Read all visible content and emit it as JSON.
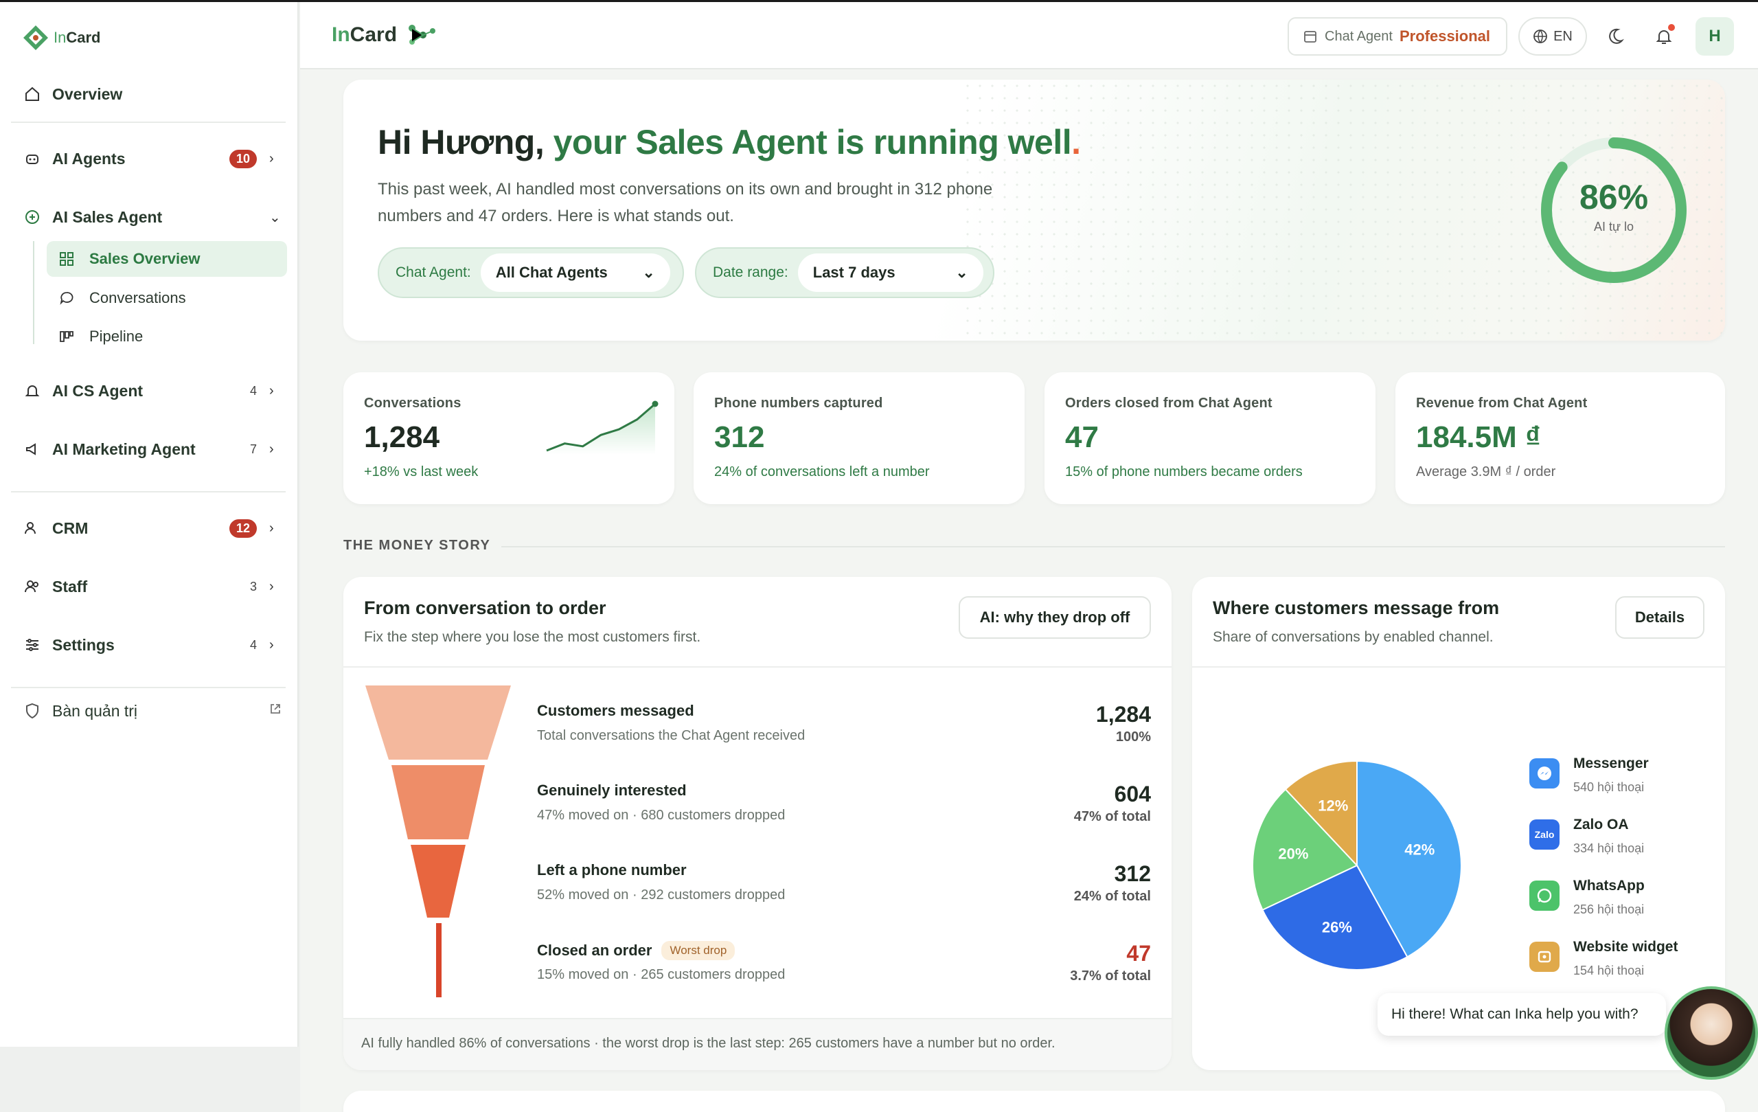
{
  "sidebar": {
    "logo_prefix": "In",
    "logo_suffix": "Card",
    "overview": "Overview",
    "items": [
      {
        "label": "AI Agents",
        "badge": "10"
      },
      {
        "label": "AI Sales Agent"
      },
      {
        "label": "AI CS Agent",
        "count": "4"
      },
      {
        "label": "AI Marketing Agent",
        "count": "7"
      },
      {
        "label": "CRM",
        "badge": "12"
      },
      {
        "label": "Staff",
        "count": "3"
      },
      {
        "label": "Settings",
        "count": "4"
      }
    ],
    "sub_items": [
      "Sales Overview",
      "Conversations",
      "Pipeline"
    ],
    "admin": "Bàn quản trị"
  },
  "header": {
    "brand_prefix": "In",
    "brand_suffix": "Card",
    "plan_label": "Chat Agent",
    "plan_value": "Professional",
    "lang": "EN",
    "avatar": "H"
  },
  "hero": {
    "greeting": "Hi Hương,",
    "headline": " your Sales Agent is running well",
    "dot": ".",
    "description": "This past week, AI handled most conversations on its own and brought in 312 phone numbers and 47 orders. Here is what stands out.",
    "filter_agent_label": "Chat Agent:",
    "filter_agent_value": "All Chat Agents",
    "filter_date_label": "Date range:",
    "filter_date_value": "Last 7 days",
    "ring_value": "86%",
    "ring_fraction": 0.86,
    "ring_label": "AI tự lo"
  },
  "stats": [
    {
      "title": "Conversations",
      "value": "1,284",
      "sub": "+18% vs last week",
      "sparkline": [
        3,
        4,
        3.6,
        5.2,
        6,
        7.4,
        9.6
      ]
    },
    {
      "title": "Phone numbers captured",
      "value": "312",
      "sub": "24% of conversations left a number"
    },
    {
      "title": "Orders closed from Chat Agent",
      "value": "47",
      "sub": "15% of phone numbers became orders"
    },
    {
      "title": "Revenue from Chat Agent",
      "value": "184.5M ₫",
      "sub": "Average 3.9M ₫ / order"
    }
  ],
  "section_label": "THE MONEY STORY",
  "funnel": {
    "title": "From conversation to order",
    "subtitle": "Fix the step where you lose the most customers first.",
    "button": "AI: why they drop off",
    "rows": [
      {
        "label": "Customers messaged",
        "desc": "Total conversations the Chat Agent received",
        "value": "1,284",
        "pct": "100%"
      },
      {
        "label": "Genuinely interested",
        "desc": "47% moved on · 680 customers dropped",
        "value": "604",
        "pct": "47% of total"
      },
      {
        "label": "Left a phone number",
        "desc": "52% moved on · 292 customers dropped",
        "value": "312",
        "pct": "24% of total"
      },
      {
        "label": "Closed an order",
        "tag": "Worst drop",
        "desc": "15% moved on · 265 customers dropped",
        "value": "47",
        "pct": "3.7% of total"
      }
    ],
    "footer": "AI fully handled 86% of conversations · the worst drop is the last step: 265 customers have a number but no order."
  },
  "channels": {
    "title": "Where customers message from",
    "subtitle": "Share of conversations by enabled channel.",
    "button": "Details",
    "legend": [
      {
        "name": "Messenger",
        "count": "540 hội thoại",
        "color": "#3b8df2"
      },
      {
        "name": "Zalo OA",
        "count": "334 hội thoại",
        "color": "#2f6ee8"
      },
      {
        "name": "WhatsApp",
        "count": "256 hội thoại",
        "color": "#4cc36a"
      },
      {
        "name": "Website widget",
        "count": "154 hội thoại",
        "color": "#e0a94a"
      }
    ]
  },
  "chart_data": {
    "type": "pie",
    "categories": [
      "Messenger",
      "Zalo OA",
      "WhatsApp",
      "Website widget"
    ],
    "values": [
      42,
      26,
      20,
      12
    ],
    "labels": [
      "42%",
      "26%",
      "20%",
      "12%"
    ],
    "colors": [
      "#4aa8f5",
      "#2e6be6",
      "#6cd07a",
      "#e0a94a"
    ]
  },
  "chat": {
    "bubble": "Hi there! What can Inka help you with?"
  }
}
